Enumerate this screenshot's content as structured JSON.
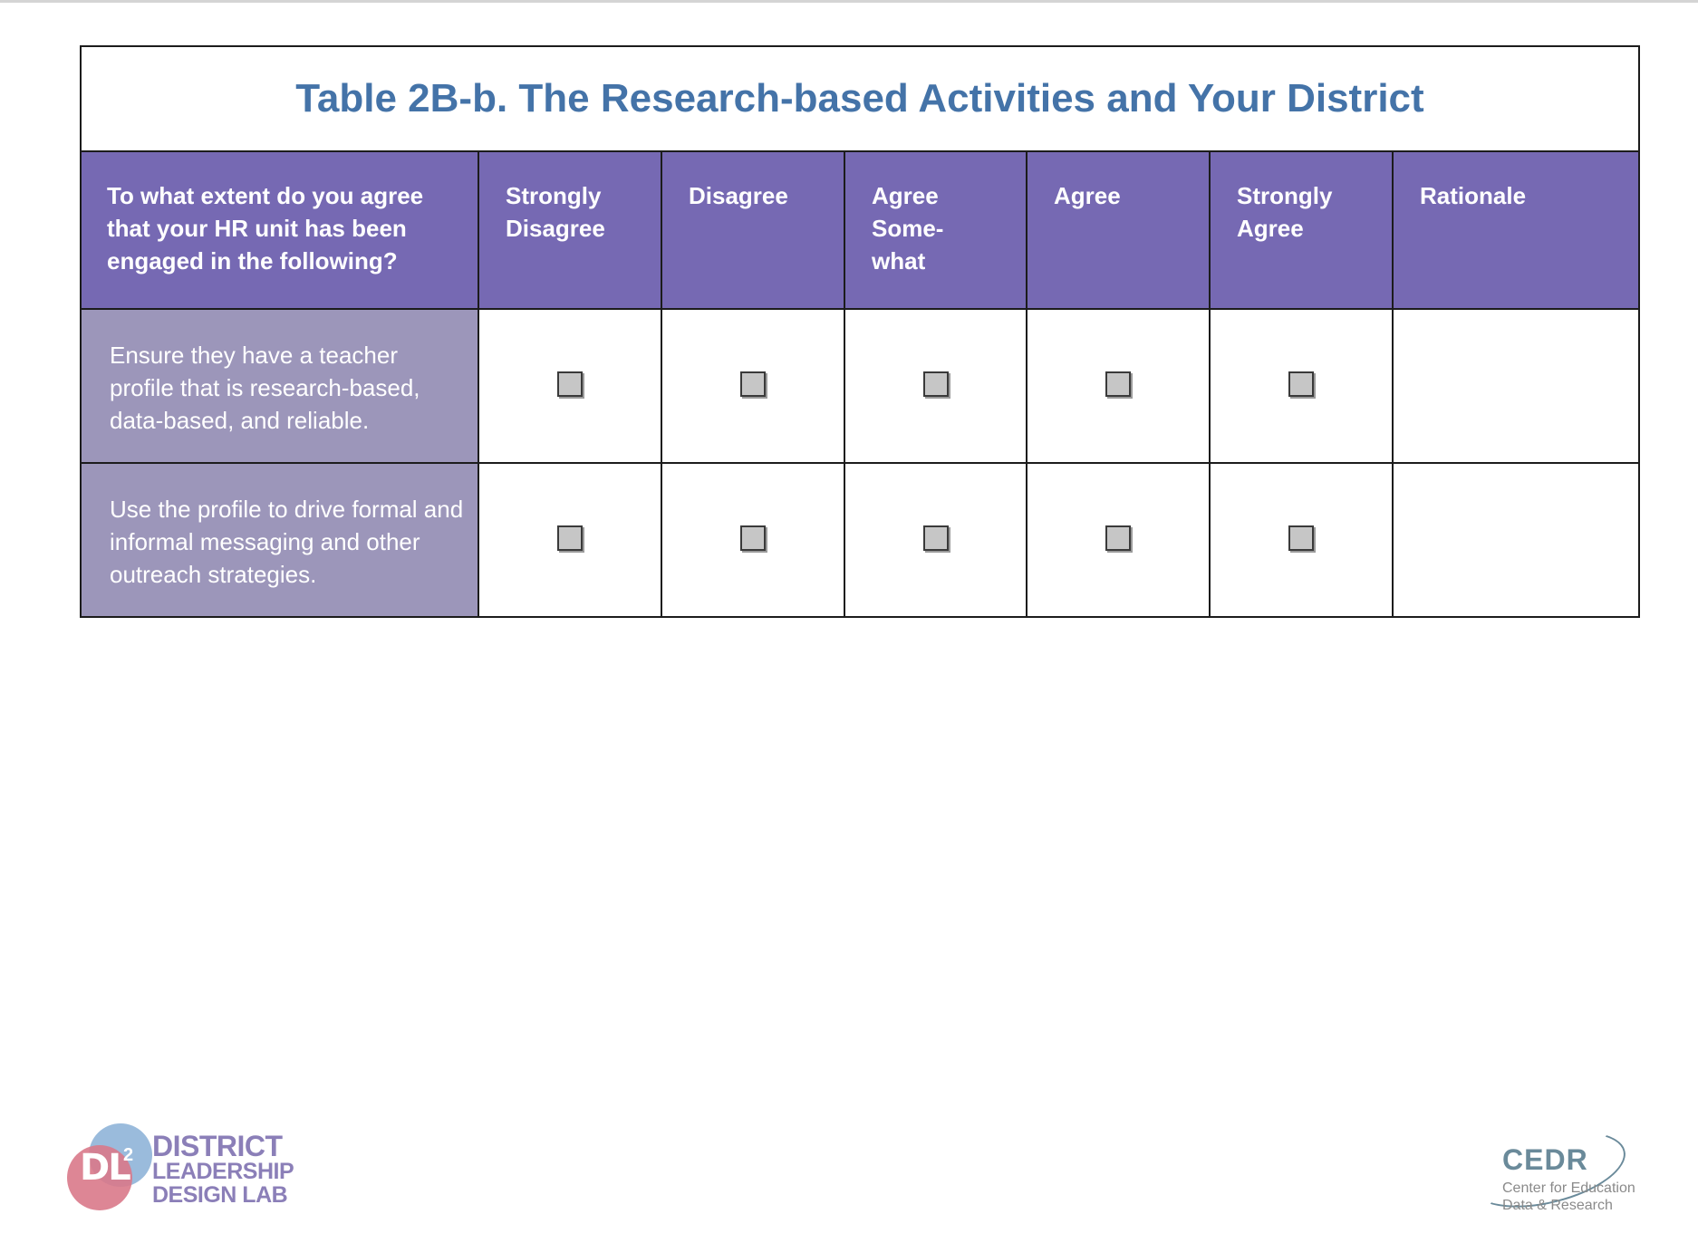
{
  "table": {
    "title": "Table 2B-b. The Research-based Activities and Your District",
    "question_header": "To what extent do you agree that your HR unit has been engaged in the following?",
    "columns": [
      {
        "label": "Strongly Disagree"
      },
      {
        "label": "Disagree"
      },
      {
        "label": "Agree Some-what"
      },
      {
        "label": "Agree"
      },
      {
        "label": "Strongly Agree"
      }
    ],
    "rationale_header": "Rationale",
    "rows": [
      {
        "label": "Ensure they have a teacher profile that is research-based, data-based, and reliable.",
        "rationale": ""
      },
      {
        "label": "Use the profile to drive formal and informal messaging and other outreach strategies.",
        "rationale": ""
      }
    ]
  },
  "footer": {
    "dl_logo": {
      "mark": "DL",
      "superscript": "2",
      "line1": "DISTRICT",
      "line2": "LEADERSHIP",
      "line3": "DESIGN LAB"
    },
    "cedr_logo": {
      "title": "CEDR",
      "sub1": "Center for Education",
      "sub2": "Data & Research"
    }
  },
  "colors": {
    "title": "#4473a8",
    "header_bg": "#7669b3",
    "row_label_bg": "#9c96ba",
    "checkbox": "#c6c6c6"
  }
}
